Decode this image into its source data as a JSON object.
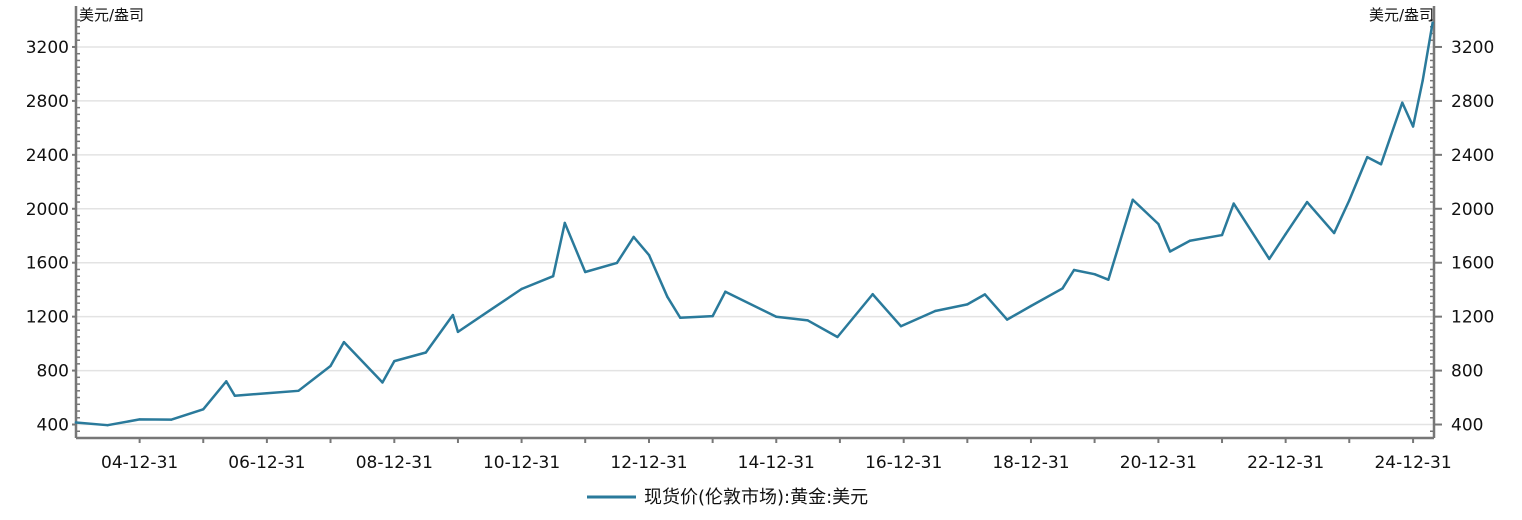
{
  "chart_data": {
    "type": "line",
    "title": "",
    "xlabel": "",
    "ylabel_left": "美元/盎司",
    "ylabel_right": "美元/盎司",
    "ylim": [
      300,
      3400
    ],
    "yticks": [
      400,
      800,
      1200,
      1600,
      2000,
      2400,
      2800,
      3200
    ],
    "ytick_labels": [
      "400",
      "800",
      "1200",
      "1600",
      "2000",
      "2400",
      "2800",
      "3200"
    ],
    "xlim": [
      "2004-01-01",
      "2025-04-30"
    ],
    "xtick_labels": [
      "04-12-31",
      "06-12-31",
      "08-12-31",
      "10-12-31",
      "12-12-31",
      "14-12-31",
      "16-12-31",
      "18-12-31",
      "20-12-31",
      "22-12-31",
      "24-12-31"
    ],
    "xtick_dates": [
      "2004-12-31",
      "2006-12-31",
      "2008-12-31",
      "2010-12-31",
      "2012-12-31",
      "2014-12-31",
      "2016-12-31",
      "2018-12-31",
      "2020-12-31",
      "2022-12-31",
      "2024-12-31"
    ],
    "grid": "horizontal",
    "legend_position": "bottom-center",
    "colors": {
      "series": "#2a7a9b",
      "grid": "#e3e3e3",
      "axis": "#777777"
    },
    "series": [
      {
        "name": "现货价(伦敦市场):黄金:美元",
        "x": [
          "2004-01-01",
          "2004-06-30",
          "2004-12-31",
          "2005-06-30",
          "2005-12-31",
          "2006-05-12",
          "2006-06-30",
          "2006-12-31",
          "2007-06-30",
          "2007-12-31",
          "2008-03-17",
          "2008-10-24",
          "2008-12-31",
          "2009-06-30",
          "2009-12-02",
          "2009-12-31",
          "2010-06-30",
          "2010-12-31",
          "2011-06-30",
          "2011-09-05",
          "2011-12-31",
          "2012-06-30",
          "2012-10-04",
          "2012-12-31",
          "2013-04-15",
          "2013-06-28",
          "2013-12-31",
          "2014-03-14",
          "2014-12-31",
          "2015-06-30",
          "2015-12-17",
          "2016-07-06",
          "2016-12-15",
          "2017-06-30",
          "2017-12-31",
          "2018-04-11",
          "2018-08-16",
          "2018-12-31",
          "2019-06-30",
          "2019-09-04",
          "2019-12-31",
          "2020-03-19",
          "2020-08-06",
          "2020-12-31",
          "2021-03-08",
          "2021-06-30",
          "2021-12-31",
          "2022-03-08",
          "2022-09-28",
          "2022-12-31",
          "2023-05-03",
          "2023-10-05",
          "2023-12-31",
          "2024-04-12",
          "2024-06-30",
          "2024-10-30",
          "2024-12-31",
          "2025-02-24",
          "2025-04-22"
        ],
        "y": [
          415,
          395,
          438,
          436,
          513,
          720,
          613,
          632,
          650,
          834,
          1011,
          712,
          870,
          934,
          1212,
          1087,
          1245,
          1405,
          1500,
          1895,
          1531,
          1598,
          1791,
          1657,
          1348,
          1192,
          1204,
          1385,
          1199,
          1172,
          1049,
          1366,
          1129,
          1242,
          1291,
          1365,
          1178,
          1279,
          1409,
          1546,
          1515,
          1474,
          2067,
          1887,
          1683,
          1763,
          1805,
          2039,
          1628,
          1812,
          2050,
          1820,
          2062,
          2383,
          2330,
          2787,
          2610,
          2950,
          3380
        ]
      }
    ]
  }
}
